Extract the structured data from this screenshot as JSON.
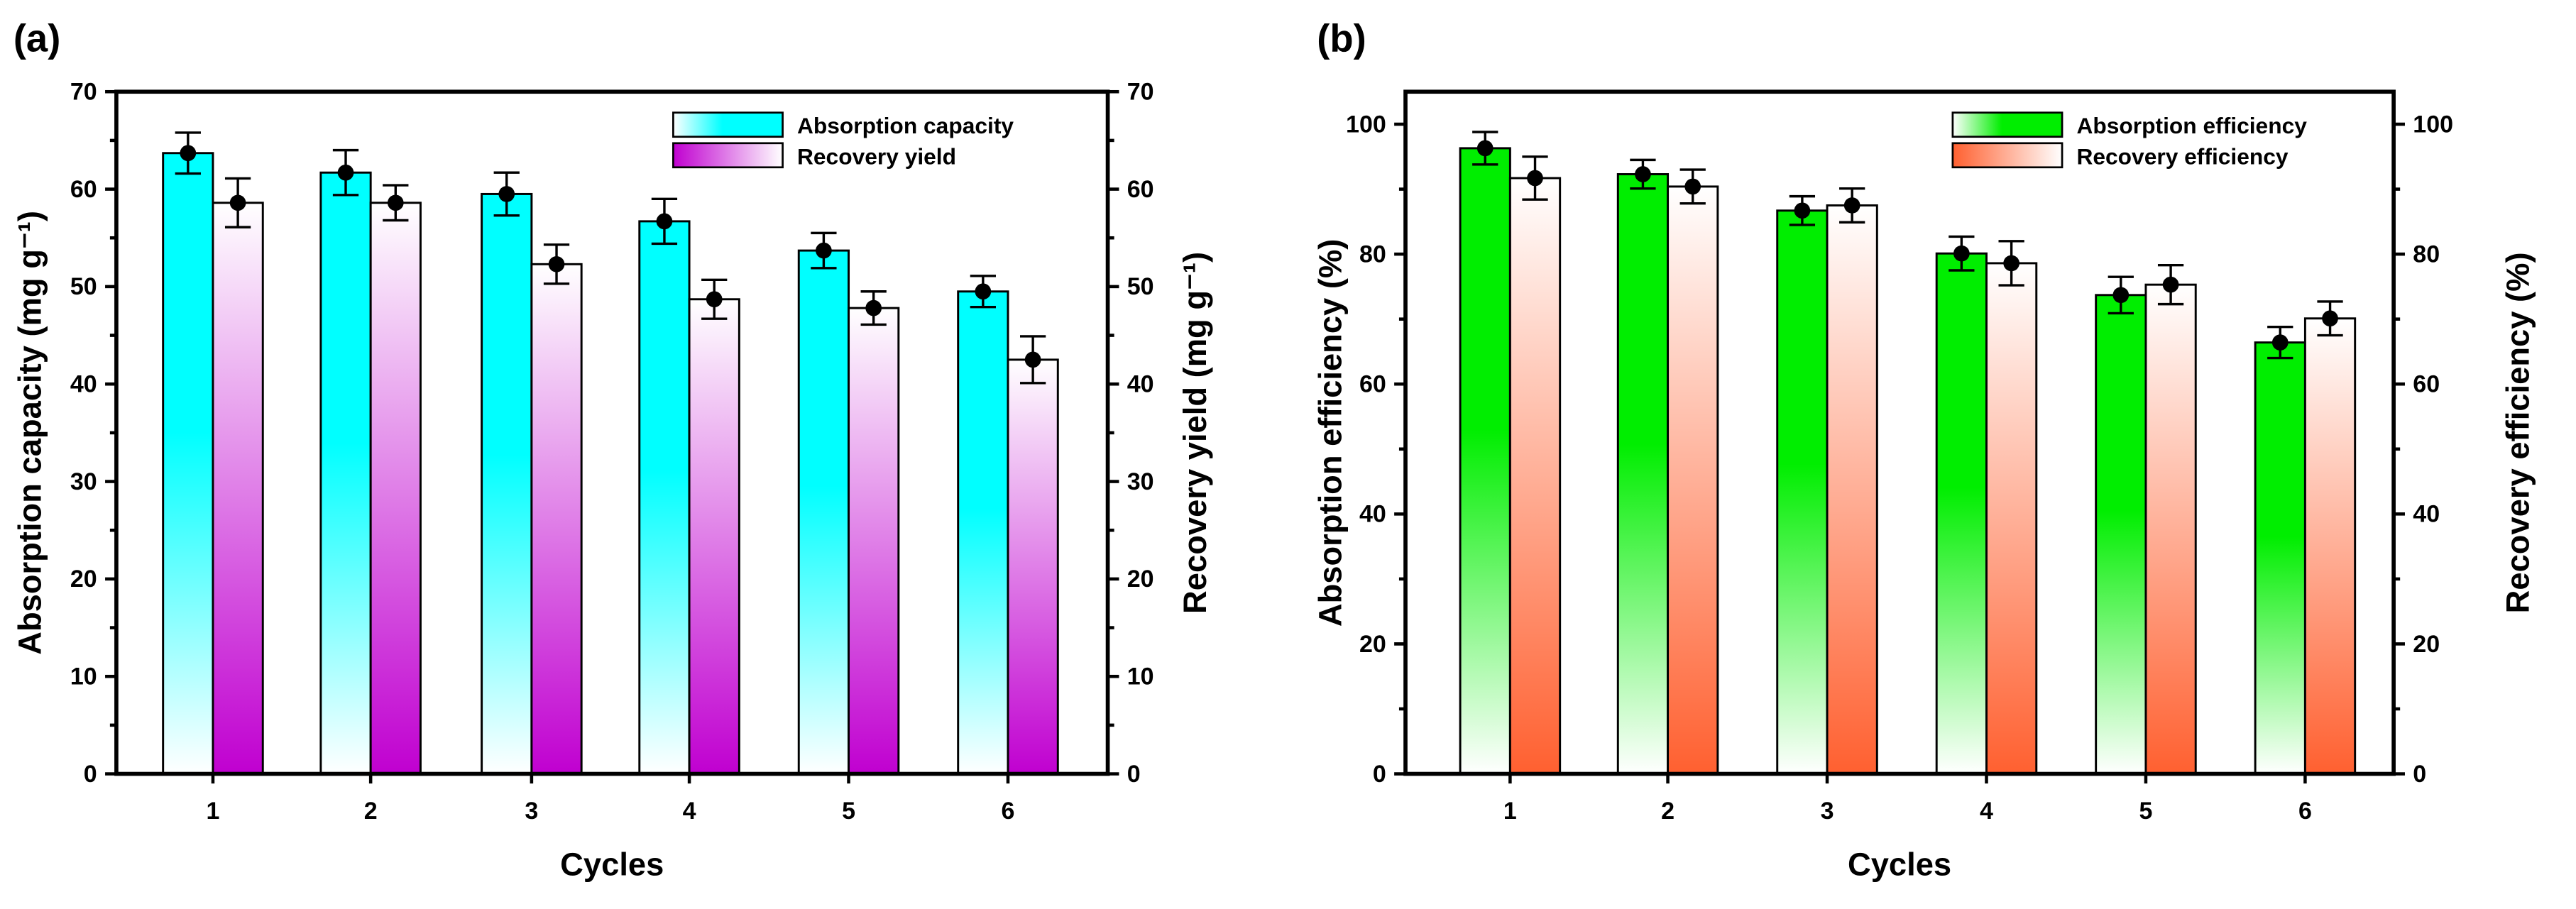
{
  "chart_data": [
    {
      "type": "bar",
      "panel_label": "(a)",
      "title": "",
      "xlabel": "Cycles",
      "ylabel": "Absorption capacity (mg g⁻¹)",
      "ylabel_right": "Recovery yield (mg g⁻¹)",
      "categories": [
        "1",
        "2",
        "3",
        "4",
        "5",
        "6"
      ],
      "ylim": [
        0,
        70
      ],
      "yticks": [
        0,
        10,
        20,
        30,
        40,
        50,
        60,
        70
      ],
      "ytick_labels": [
        "0",
        "10",
        "20",
        "30",
        "40",
        "50",
        "60",
        "70"
      ],
      "legend_position": "top-right",
      "series": [
        {
          "name": "Absorption capacity",
          "axis": "left",
          "values": [
            63.7,
            61.7,
            59.5,
            56.7,
            53.7,
            49.5
          ],
          "errors": [
            2.1,
            2.3,
            2.2,
            2.3,
            1.8,
            1.6
          ],
          "color_top": "#00ffff",
          "color_bottom": "#ffffff"
        },
        {
          "name": "Recovery yield",
          "axis": "right",
          "values": [
            58.6,
            58.6,
            52.3,
            48.7,
            47.8,
            42.5
          ],
          "errors": [
            2.5,
            1.8,
            2.0,
            2.0,
            1.7,
            2.4
          ],
          "color_top": "#ffffff",
          "color_bottom": "#c000d0"
        }
      ]
    },
    {
      "type": "bar",
      "panel_label": "(b)",
      "title": "",
      "xlabel": "Cycles",
      "ylabel": "Absorption efficiency (%)",
      "ylabel_right": "Recovery efficiency (%)",
      "categories": [
        "1",
        "2",
        "3",
        "4",
        "5",
        "6"
      ],
      "ylim": [
        0,
        105
      ],
      "yticks": [
        0,
        20,
        40,
        60,
        80,
        100
      ],
      "ytick_labels": [
        "0",
        "20",
        "40",
        "60",
        "80",
        "100"
      ],
      "legend_position": "top-right",
      "series": [
        {
          "name": "Absorption efficiency",
          "axis": "left",
          "values": [
            96.3,
            92.3,
            86.7,
            80.1,
            73.7,
            66.4
          ],
          "errors": [
            2.5,
            2.2,
            2.2,
            2.6,
            2.8,
            2.4
          ],
          "color_top": "#00ee00",
          "color_bottom": "#ffffff"
        },
        {
          "name": "Recovery efficiency",
          "axis": "right",
          "values": [
            91.7,
            90.4,
            87.5,
            78.6,
            75.3,
            70.1
          ],
          "errors": [
            3.3,
            2.6,
            2.6,
            3.4,
            3.0,
            2.6
          ],
          "color_top": "#ffffff",
          "color_bottom": "#ff6030"
        }
      ]
    }
  ]
}
